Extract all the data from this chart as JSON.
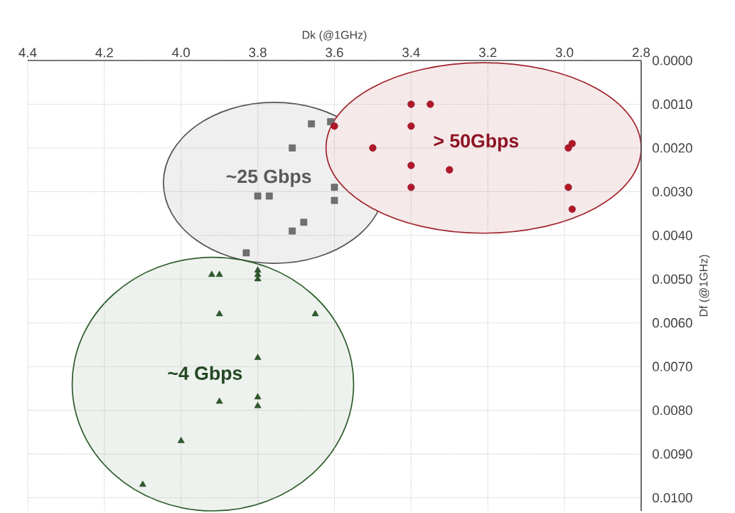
{
  "chart_data": {
    "type": "scatter",
    "xlabel": "Dk (@1GHz)",
    "ylabel": "Df (@1GHz)",
    "xlim": [
      4.4,
      2.8
    ],
    "ylim": [
      0.0103,
      0
    ],
    "xticks": [
      4.4,
      4.2,
      {
        "value": 4,
        "label": "4.0"
      },
      3.8,
      3.6,
      3.4,
      3.2,
      {
        "value": 3,
        "label": "3.0"
      },
      2.8
    ],
    "yticks": [
      {
        "value": 0,
        "label": "0.0000"
      },
      {
        "value": 0.001,
        "label": "0.0010"
      },
      {
        "value": 0.002,
        "label": "0.0020"
      },
      {
        "value": 0.003,
        "label": "0.0030"
      },
      {
        "value": 0.004,
        "label": "0.0040"
      },
      {
        "value": 0.005,
        "label": "0.0050"
      },
      {
        "value": 0.006,
        "label": "0.0060"
      },
      {
        "value": 0.007,
        "label": "0.0070"
      },
      {
        "value": 0.008,
        "label": "0.0080"
      },
      {
        "value": 0.009,
        "label": "0.0090"
      },
      {
        "value": 0.01,
        "label": "0.0100"
      }
    ],
    "grid": true,
    "series": [
      {
        "color": "#707070",
        "marker": "square",
        "x": [
          3.66,
          3.61,
          3.71,
          3.8,
          3.77,
          3.6,
          3.6,
          3.68,
          3.71,
          3.83
        ],
        "values": [
          0.00145,
          0.0014,
          0.002,
          0.0031,
          0.0031,
          0.0029,
          0.0032,
          0.0037,
          0.0039,
          0.0044
        ]
      },
      {
        "color": "#b0182a",
        "marker": "circle",
        "x": [
          3.6,
          3.5,
          3.4,
          3.35,
          3.4,
          3.4,
          3.3,
          3.4,
          2.99,
          2.98,
          2.99,
          2.98
        ],
        "values": [
          0.0015,
          0.002,
          0.001,
          0.001,
          0.0015,
          0.0024,
          0.0025,
          0.0029,
          0.002,
          0.0019,
          0.0029,
          0.0034
        ]
      },
      {
        "color": "#2d5a2d",
        "marker": "triangle",
        "x": [
          3.92,
          3.9,
          3.8,
          3.8,
          3.8,
          3.9,
          3.65,
          3.8,
          3.9,
          3.8,
          3.8,
          4.0,
          4.1
        ],
        "values": [
          0.0049,
          0.0049,
          0.0048,
          0.0049,
          0.005,
          0.0058,
          0.0058,
          0.0068,
          0.0078,
          0.0077,
          0.0079,
          0.0087,
          0.0097
        ]
      }
    ],
    "annotations": [
      "~25 Gbps",
      "> 50Gbps",
      "~4 Gbps"
    ]
  }
}
